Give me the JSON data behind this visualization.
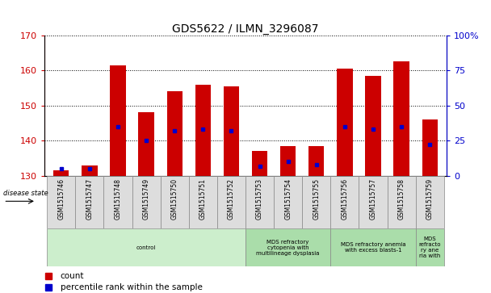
{
  "title": "GDS5622 / ILMN_3296087",
  "samples": [
    "GSM1515746",
    "GSM1515747",
    "GSM1515748",
    "GSM1515749",
    "GSM1515750",
    "GSM1515751",
    "GSM1515752",
    "GSM1515753",
    "GSM1515754",
    "GSM1515755",
    "GSM1515756",
    "GSM1515757",
    "GSM1515758",
    "GSM1515759"
  ],
  "counts": [
    131.5,
    133.0,
    161.5,
    148.0,
    154.0,
    156.0,
    155.5,
    137.0,
    138.5,
    138.5,
    160.5,
    158.5,
    162.5,
    146.0
  ],
  "percentile_ranks": [
    5,
    5,
    35,
    25,
    32,
    33,
    32,
    7,
    10,
    8,
    35,
    33,
    35,
    22
  ],
  "baseline": 130,
  "ylim_left": [
    130,
    170
  ],
  "ylim_right": [
    0,
    100
  ],
  "yticks_left": [
    130,
    140,
    150,
    160,
    170
  ],
  "yticks_right": [
    0,
    25,
    50,
    75,
    100
  ],
  "bar_color": "#cc0000",
  "blue_marker_color": "#0000cc",
  "disease_groups": [
    {
      "label": "control",
      "start": 0,
      "end": 7,
      "bg": "#cceecc"
    },
    {
      "label": "MDS refractory\ncytopenia with\nmultilineage dysplasia",
      "start": 7,
      "end": 10,
      "bg": "#aaddaa"
    },
    {
      "label": "MDS refractory anemia\nwith excess blasts-1",
      "start": 10,
      "end": 13,
      "bg": "#aaddaa"
    },
    {
      "label": "MDS\nrefracto\nry ane\nria with",
      "start": 13,
      "end": 14,
      "bg": "#aaddaa"
    }
  ],
  "legend_count_label": "count",
  "legend_percentile_label": "percentile rank within the sample",
  "left_axis_color": "#cc0000",
  "right_axis_color": "#0000cc"
}
